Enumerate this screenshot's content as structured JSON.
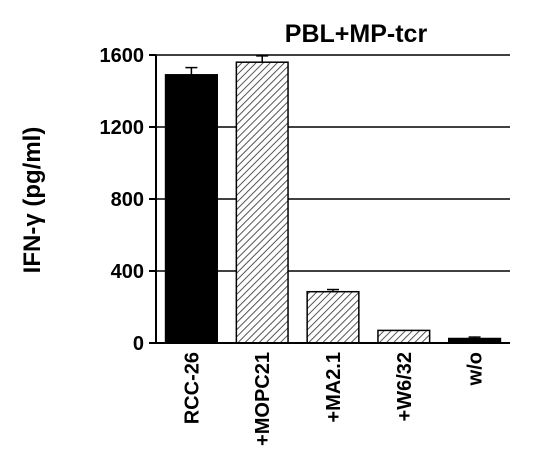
{
  "chart_data": {
    "type": "bar",
    "title": "PBL+MP-tcr",
    "xlabel": "",
    "ylabel": "IFN-γ  (pg/ml)",
    "ylim": [
      0,
      1600
    ],
    "yticks": [
      0,
      400,
      800,
      1200,
      1600
    ],
    "grid": true,
    "categories": [
      "RCC-26",
      "+MOPC21",
      "+MA2.1",
      "+W6/32",
      "w/o"
    ],
    "values": [
      1490,
      1560,
      285,
      70,
      25
    ],
    "errors": [
      40,
      35,
      12,
      0,
      8
    ],
    "fills": [
      "solid",
      "hatched",
      "hatched",
      "hatched",
      "solid"
    ],
    "colors": {
      "solid": "#000000",
      "hatch_line": "#555555",
      "hatch_bg": "#ffffff"
    }
  }
}
